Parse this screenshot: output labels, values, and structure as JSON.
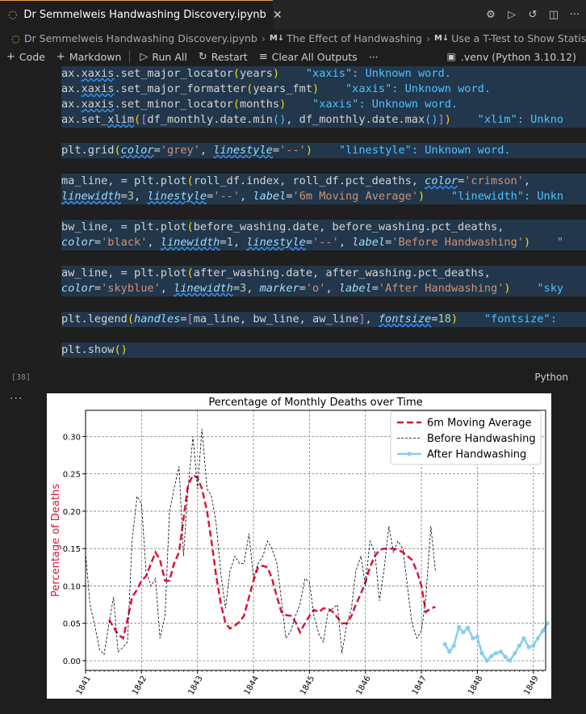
{
  "tab": {
    "title": "Dr Semmelweis Handwashing Discovery.ipynb",
    "close": "✕"
  },
  "breadcrumb": {
    "file": "Dr Semmelweis Handwashing Discovery.ipynb",
    "section1": "The Effect of Handwashing",
    "section2": "Use a T-Test to Show Statistica"
  },
  "toolbar": {
    "code": "Code",
    "markdown": "Markdown",
    "run_all": "Run All",
    "restart": "Restart",
    "clear_outputs": "Clear All Outputs",
    "more": "···",
    "kernel": ".venv (Python 3.10.12)"
  },
  "cell": {
    "exec_count": "[38]",
    "language": "Python",
    "lines": [
      {
        "hl": true,
        "html": "ax.<span class='sq'>xaxis</span>.set_major_locator<span class='br'>(</span>years<span class='br'>)</span>    <span class='hint'>\"xaxis\": Unknown word.</span>"
      },
      {
        "hl": true,
        "html": "ax.<span class='sq'>xaxis</span>.set_major_formatter<span class='br'>(</span>years_fmt<span class='br'>)</span>    <span class='hint'>\"xaxis\": Unknown word.</span>"
      },
      {
        "hl": true,
        "html": "ax.<span class='sq'>xaxis</span>.set_minor_locator<span class='br'>(</span>months<span class='br'>)</span>    <span class='hint'>\"xaxis\": Unknown word.</span>"
      },
      {
        "hl": true,
        "html": "ax.set_<span class='sq'>xlim</span><span class='br'>(</span><span class='br2'>[</span>df_monthly.date.min<span class='hint'>()</span>, df_monthly.date.max<span class='hint'>()</span><span class='br2'>]</span><span class='br'>)</span>    <span class='hint'>\"xlim\": Unkno</span>"
      },
      {
        "hl": false,
        "html": ""
      },
      {
        "hl": true,
        "html": "plt.grid<span class='br'>(</span><span class='prm'>color</span>=<span class='str'>'grey'</span>, <span class='prm'>linestyle</span>=<span class='str'>'--'</span><span class='br'>)</span>    <span class='hint'>\"linestyle\": Unknown word.</span>"
      },
      {
        "hl": false,
        "html": ""
      },
      {
        "hl": true,
        "html": "ma_line, = plt.plot<span class='br'>(</span>roll_df.index, roll_df.pct_deaths, <span class='prm'>color</span>=<span class='str'>'crimson'</span>,"
      },
      {
        "hl": true,
        "html": "<span class='prm'>linewidth</span>=<span class='num'>3</span>, <span class='prm'>linestyle</span>=<span class='str'>'--'</span>, <span class='prm' style='text-decoration:none'>label</span>=<span class='str'>'6m Moving Average'</span><span class='br'>)</span>    <span class='hint'>\"linewidth\": Unkn</span>"
      },
      {
        "hl": false,
        "html": ""
      },
      {
        "hl": true,
        "html": "bw_line, = plt.plot<span class='br'>(</span>before_washing.date, before_washing.pct_deaths,"
      },
      {
        "hl": true,
        "html": "<span class='prm' style='text-decoration:none'>color</span>=<span class='str'>'black'</span>, <span class='prm'>linewidth</span>=<span class='num'>1</span>, <span class='prm'>linestyle</span>=<span class='str'>'--'</span>, <span class='prm' style='text-decoration:none'>label</span>=<span class='str'>'Before Handwashing'</span><span class='br'>)</span>    <span class='hint'>\"</span>"
      },
      {
        "hl": false,
        "html": ""
      },
      {
        "hl": true,
        "html": "aw_line, = plt.plot<span class='br'>(</span>after_washing.date, after_washing.pct_deaths,"
      },
      {
        "hl": true,
        "html": "<span class='prm' style='text-decoration:none'>color</span>=<span class='str'>'skyblue'</span>, <span class='prm'>linewidth</span>=<span class='num'>3</span>, <span class='prm' style='text-decoration:none'>marker</span>=<span class='str'>'o'</span>, <span class='prm' style='text-decoration:none'>label</span>=<span class='str'>'After Handwashing'</span><span class='br'>)</span>    <span class='hint'>\"sky</span>"
      },
      {
        "hl": false,
        "html": ""
      },
      {
        "hl": true,
        "html": "plt.legend<span class='br'>(</span><span class='prm' style='text-decoration:none'>handles</span>=<span class='br2'>[</span>ma_line, bw_line, aw_line<span class='br2'>]</span>, <span class='prm'>fontsize</span>=<span class='num'>18</span><span class='br'>)</span>    <span class='hint'>\"fontsize\": </span>"
      },
      {
        "hl": false,
        "html": ""
      },
      {
        "hl": true,
        "html": "plt.show<span class='br'>()</span>"
      }
    ]
  },
  "chart_data": {
    "type": "line",
    "title": "Percentage of Monthly Deaths over Time",
    "ylabel": "Percentage of Deaths",
    "xlabel": "",
    "xlim": [
      1841.0,
      1849.22
    ],
    "ylim": [
      -0.013,
      0.335
    ],
    "yticks": [
      "0.00",
      "0.05",
      "0.10",
      "0.15",
      "0.20",
      "0.25",
      "0.30"
    ],
    "xticks": [
      "1841",
      "1842",
      "1843",
      "1844",
      "1845",
      "1846",
      "1847",
      "1848",
      "1849"
    ],
    "grid": true,
    "legend_position": "top-right",
    "series": [
      {
        "name": "6m Moving Average",
        "color": "#dc143c",
        "style": "dashed",
        "x": [
          1841.42,
          1841.5,
          1841.58,
          1841.67,
          1841.75,
          1841.83,
          1841.92,
          1842.0,
          1842.08,
          1842.17,
          1842.25,
          1842.33,
          1842.42,
          1842.5,
          1842.58,
          1842.67,
          1842.75,
          1842.83,
          1842.92,
          1843.0,
          1843.08,
          1843.17,
          1843.25,
          1843.33,
          1843.42,
          1843.5,
          1843.58,
          1843.67,
          1843.75,
          1843.83,
          1843.92,
          1844.0,
          1844.08,
          1844.17,
          1844.25,
          1844.33,
          1844.42,
          1844.5,
          1844.58,
          1844.67,
          1844.75,
          1844.83,
          1844.92,
          1845.0,
          1845.08,
          1845.17,
          1845.25,
          1845.33,
          1845.42,
          1845.5,
          1845.58,
          1845.67,
          1845.75,
          1845.83,
          1845.92,
          1846.0,
          1846.08,
          1846.17,
          1846.25,
          1846.33,
          1846.42,
          1846.5,
          1846.58,
          1846.67,
          1846.75,
          1846.83,
          1846.92,
          1847.0,
          1847.08,
          1847.17,
          1847.25
        ],
        "y": [
          0.055,
          0.045,
          0.035,
          0.03,
          0.055,
          0.085,
          0.095,
          0.107,
          0.113,
          0.13,
          0.145,
          0.135,
          0.107,
          0.107,
          0.13,
          0.145,
          0.19,
          0.235,
          0.248,
          0.245,
          0.23,
          0.2,
          0.16,
          0.115,
          0.075,
          0.05,
          0.043,
          0.047,
          0.052,
          0.06,
          0.085,
          0.107,
          0.125,
          0.127,
          0.125,
          0.11,
          0.085,
          0.065,
          0.061,
          0.06,
          0.052,
          0.038,
          0.05,
          0.06,
          0.068,
          0.065,
          0.07,
          0.07,
          0.065,
          0.058,
          0.05,
          0.05,
          0.06,
          0.075,
          0.09,
          0.105,
          0.125,
          0.14,
          0.148,
          0.15,
          0.15,
          0.15,
          0.148,
          0.145,
          0.14,
          0.135,
          0.12,
          0.1,
          0.065,
          0.07,
          0.072
        ]
      },
      {
        "name": "Before Handwashing",
        "color": "#000000",
        "style": "dashed",
        "x": [
          1841.0,
          1841.08,
          1841.17,
          1841.25,
          1841.33,
          1841.42,
          1841.5,
          1841.58,
          1841.67,
          1841.75,
          1841.83,
          1841.92,
          1842.0,
          1842.08,
          1842.17,
          1842.25,
          1842.33,
          1842.42,
          1842.5,
          1842.58,
          1842.67,
          1842.75,
          1842.83,
          1842.92,
          1843.0,
          1843.08,
          1843.17,
          1843.25,
          1843.33,
          1843.42,
          1843.5,
          1843.58,
          1843.67,
          1843.75,
          1843.83,
          1843.92,
          1844.0,
          1844.08,
          1844.17,
          1844.25,
          1844.33,
          1844.42,
          1844.5,
          1844.58,
          1844.67,
          1844.75,
          1844.83,
          1844.92,
          1845.0,
          1845.08,
          1845.17,
          1845.25,
          1845.33,
          1845.42,
          1845.5,
          1845.58,
          1845.67,
          1845.75,
          1845.83,
          1845.92,
          1846.0,
          1846.08,
          1846.17,
          1846.25,
          1846.33,
          1846.42,
          1846.5,
          1846.58,
          1846.67,
          1846.75,
          1846.83,
          1846.92,
          1847.0,
          1847.08,
          1847.17,
          1847.25
        ],
        "y": [
          0.145,
          0.075,
          0.045,
          0.015,
          0.008,
          0.05,
          0.085,
          0.012,
          0.018,
          0.025,
          0.16,
          0.22,
          0.21,
          0.12,
          0.1,
          0.11,
          0.03,
          0.06,
          0.2,
          0.23,
          0.26,
          0.14,
          0.23,
          0.3,
          0.23,
          0.31,
          0.23,
          0.22,
          0.185,
          0.115,
          0.07,
          0.12,
          0.14,
          0.13,
          0.13,
          0.17,
          0.11,
          0.13,
          0.14,
          0.16,
          0.15,
          0.13,
          0.08,
          0.03,
          0.04,
          0.06,
          0.075,
          0.11,
          0.105,
          0.06,
          0.035,
          0.025,
          0.065,
          0.07,
          0.075,
          0.01,
          0.05,
          0.07,
          0.12,
          0.14,
          0.1,
          0.16,
          0.145,
          0.08,
          0.12,
          0.18,
          0.145,
          0.16,
          0.15,
          0.1,
          0.05,
          0.03,
          0.04,
          0.085,
          0.18,
          0.12
        ]
      },
      {
        "name": "After Handwashing",
        "color": "#87ceeb",
        "style": "solid-marker",
        "x": [
          1847.42,
          1847.5,
          1847.58,
          1847.67,
          1847.75,
          1847.83,
          1847.92,
          1848.0,
          1848.08,
          1848.17,
          1848.25,
          1848.33,
          1848.42,
          1848.5,
          1848.58,
          1848.67,
          1848.75,
          1848.83,
          1848.92,
          1849.0,
          1849.08,
          1849.17,
          1849.25
        ],
        "y": [
          0.022,
          0.012,
          0.02,
          0.045,
          0.038,
          0.044,
          0.03,
          0.032,
          0.01,
          0.0,
          0.006,
          0.01,
          0.012,
          0.005,
          0.0,
          0.01,
          0.02,
          0.03,
          0.018,
          0.02,
          0.03,
          0.04,
          0.05
        ]
      }
    ]
  }
}
